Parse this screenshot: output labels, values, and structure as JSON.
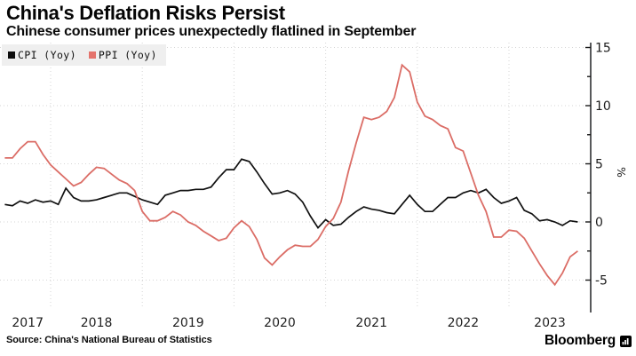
{
  "header": {
    "title": "China's Deflation Risks Persist",
    "subtitle": "Chinese consumer prices unexpectedly flatlined in September"
  },
  "legend": [
    {
      "label": "CPI (Yoy)",
      "color": "#0d0d0d"
    },
    {
      "label": "PPI (Yoy)",
      "color": "#e4736c"
    }
  ],
  "chart_data": {
    "type": "line",
    "frequency": "monthly",
    "x_start": "2017-06",
    "x_end": "2023-09",
    "x_tick_labels": [
      "2017",
      "2018",
      "2019",
      "2020",
      "2021",
      "2022",
      "2023"
    ],
    "y_axis": {
      "unit": "%",
      "tick_labels": [
        "15",
        "10",
        "5",
        "0",
        "-5"
      ],
      "major_ticks": [
        15,
        10,
        5,
        0,
        -5
      ],
      "minor_ticks": [
        12.5,
        7.5,
        2.5,
        -2.5
      ],
      "range": [
        -7.3,
        15.4
      ],
      "position": "right"
    },
    "grid": "dotted",
    "legend_position": "top-left",
    "series": [
      {
        "name": "CPI (Yoy)",
        "color": "#111111",
        "values": [
          1.5,
          1.4,
          1.8,
          1.6,
          1.9,
          1.7,
          1.8,
          1.5,
          2.9,
          2.1,
          1.8,
          1.8,
          1.9,
          2.1,
          2.3,
          2.5,
          2.5,
          2.2,
          1.9,
          1.7,
          1.5,
          2.3,
          2.5,
          2.7,
          2.7,
          2.8,
          2.8,
          3.0,
          3.8,
          4.5,
          4.5,
          5.4,
          5.2,
          4.3,
          3.3,
          2.4,
          2.5,
          2.7,
          2.4,
          1.7,
          0.5,
          -0.5,
          0.2,
          -0.3,
          -0.2,
          0.4,
          0.9,
          1.3,
          1.1,
          1.0,
          0.8,
          0.7,
          1.5,
          2.3,
          1.5,
          0.9,
          0.9,
          1.5,
          2.1,
          2.1,
          2.5,
          2.7,
          2.5,
          2.8,
          2.1,
          1.6,
          1.8,
          2.1,
          1.0,
          0.7,
          0.1,
          0.2,
          0.0,
          -0.3,
          0.1,
          0.0
        ]
      },
      {
        "name": "PPI (Yoy)",
        "color": "#db6d66",
        "values": [
          5.5,
          5.5,
          6.3,
          6.9,
          6.9,
          5.8,
          4.9,
          4.3,
          3.7,
          3.1,
          3.4,
          4.1,
          4.7,
          4.6,
          4.1,
          3.6,
          3.3,
          2.7,
          0.9,
          0.1,
          0.1,
          0.4,
          0.9,
          0.6,
          0.0,
          -0.3,
          -0.8,
          -1.2,
          -1.6,
          -1.4,
          -0.5,
          0.1,
          -0.4,
          -1.5,
          -3.1,
          -3.7,
          -3.0,
          -2.4,
          -2.0,
          -2.1,
          -2.1,
          -1.5,
          -0.4,
          0.3,
          1.7,
          4.4,
          6.8,
          9.0,
          8.8,
          9.0,
          9.5,
          10.7,
          13.5,
          12.9,
          10.3,
          9.1,
          8.8,
          8.3,
          8.0,
          6.4,
          6.1,
          4.2,
          2.3,
          0.9,
          -1.3,
          -1.3,
          -0.7,
          -0.8,
          -1.4,
          -2.5,
          -3.6,
          -4.6,
          -5.4,
          -4.4,
          -3.0,
          -2.5
        ]
      }
    ],
    "title": "China's Deflation Risks Persist",
    "subtitle": "Chinese consumer prices unexpectedly flatlined in September"
  },
  "footer": {
    "source": "Source: China's National Bureau of Statistics",
    "brand": "Bloomberg"
  }
}
